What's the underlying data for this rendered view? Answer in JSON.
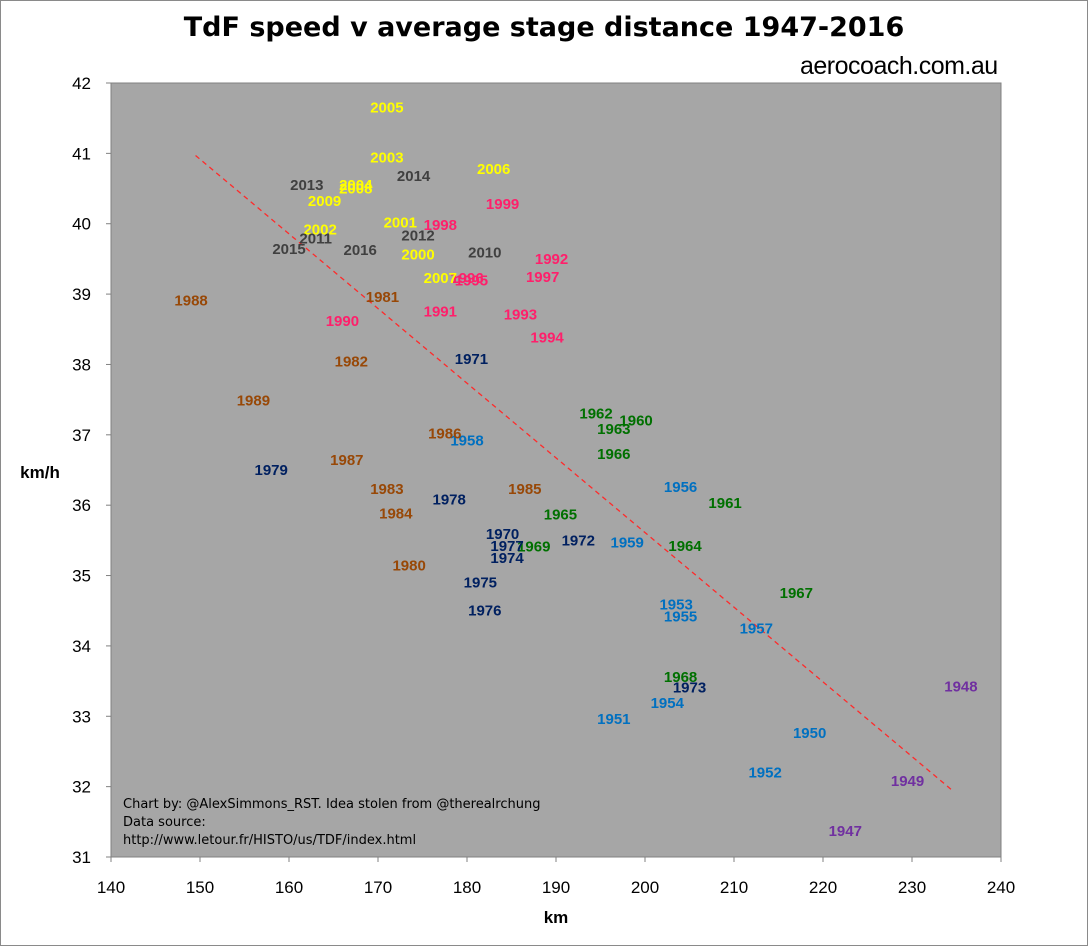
{
  "title": "TdF speed v average stage distance 1947-2016",
  "watermark": "aerocoach.com.au",
  "credits": {
    "line1": "Chart by: @AlexSimmons_RST. Idea stolen from @therealrchung",
    "line2": "Data source:",
    "line3": "http://www.letour.fr/HISTO/us/TDF/index.html"
  },
  "chart_data": {
    "type": "scatter",
    "title": "TdF speed v average stage distance 1947-2016",
    "xlabel": "km",
    "ylabel": "km/h",
    "xlim": [
      140,
      240
    ],
    "ylim": [
      31,
      42
    ],
    "xticks": [
      "140",
      "150",
      "160",
      "170",
      "180",
      "190",
      "200",
      "210",
      "220",
      "230",
      "240"
    ],
    "yticks": [
      "31",
      "32",
      "33",
      "34",
      "35",
      "36",
      "37",
      "38",
      "39",
      "40",
      "41",
      "42"
    ],
    "grid": false,
    "plot_background": "#a6a6a6",
    "trendline": {
      "style": "dashed",
      "color": "#ff2a2a",
      "x": [
        149.5,
        234.5
      ],
      "y": [
        40.97,
        31.95
      ]
    },
    "groups": [
      {
        "color": "#7030a0",
        "points": [
          {
            "label": "1947",
            "x": 222.5,
            "y": 31.37
          },
          {
            "label": "1948",
            "x": 235.5,
            "y": 33.42
          },
          {
            "label": "1949",
            "x": 229.5,
            "y": 32.08
          }
        ]
      },
      {
        "color": "#0070c0",
        "points": [
          {
            "label": "1950",
            "x": 218.5,
            "y": 32.76
          },
          {
            "label": "1951",
            "x": 196.5,
            "y": 32.96
          },
          {
            "label": "1952",
            "x": 213.5,
            "y": 32.2
          },
          {
            "label": "1953",
            "x": 203.5,
            "y": 34.59
          },
          {
            "label": "1954",
            "x": 202.5,
            "y": 33.19
          },
          {
            "label": "1955",
            "x": 204.0,
            "y": 34.42
          },
          {
            "label": "1956",
            "x": 204.0,
            "y": 36.26
          },
          {
            "label": "1957",
            "x": 212.5,
            "y": 34.25
          },
          {
            "label": "1958",
            "x": 180.0,
            "y": 36.92
          },
          {
            "label": "1959",
            "x": 198.0,
            "y": 35.47
          }
        ]
      },
      {
        "color": "#007000",
        "points": [
          {
            "label": "1960",
            "x": 199.0,
            "y": 37.2
          },
          {
            "label": "1961",
            "x": 209.0,
            "y": 36.03
          },
          {
            "label": "1962",
            "x": 194.5,
            "y": 37.3
          },
          {
            "label": "1963",
            "x": 196.5,
            "y": 37.08
          },
          {
            "label": "1964",
            "x": 204.5,
            "y": 35.42
          },
          {
            "label": "1965",
            "x": 190.5,
            "y": 35.87
          },
          {
            "label": "1966",
            "x": 196.5,
            "y": 36.73
          },
          {
            "label": "1967",
            "x": 217.0,
            "y": 34.75
          },
          {
            "label": "1968",
            "x": 204.0,
            "y": 33.56
          },
          {
            "label": "1969",
            "x": 187.5,
            "y": 35.41
          }
        ]
      },
      {
        "color": "#002060",
        "points": [
          {
            "label": "1970",
            "x": 184.0,
            "y": 35.59
          },
          {
            "label": "1971",
            "x": 180.5,
            "y": 38.08
          },
          {
            "label": "1972",
            "x": 192.5,
            "y": 35.5
          },
          {
            "label": "1973",
            "x": 205.0,
            "y": 33.41
          },
          {
            "label": "1974",
            "x": 184.5,
            "y": 35.25
          },
          {
            "label": "1975",
            "x": 181.5,
            "y": 34.9
          },
          {
            "label": "1976",
            "x": 182.0,
            "y": 34.5
          },
          {
            "label": "1977",
            "x": 184.5,
            "y": 35.42
          },
          {
            "label": "1978",
            "x": 178.0,
            "y": 36.08
          },
          {
            "label": "1979",
            "x": 158.0,
            "y": 36.5
          }
        ]
      },
      {
        "color": "#984807",
        "points": [
          {
            "label": "1980",
            "x": 173.5,
            "y": 35.14
          },
          {
            "label": "1981",
            "x": 170.5,
            "y": 38.96
          },
          {
            "label": "1982",
            "x": 167.0,
            "y": 38.04
          },
          {
            "label": "1983",
            "x": 171.0,
            "y": 36.23
          },
          {
            "label": "1984",
            "x": 172.0,
            "y": 35.88
          },
          {
            "label": "1985",
            "x": 186.5,
            "y": 36.23
          },
          {
            "label": "1986",
            "x": 177.5,
            "y": 37.02
          },
          {
            "label": "1987",
            "x": 166.5,
            "y": 36.64
          },
          {
            "label": "1988",
            "x": 149.0,
            "y": 38.91
          },
          {
            "label": "1989",
            "x": 156.0,
            "y": 37.49
          }
        ]
      },
      {
        "color": "#ff1f6b",
        "points": [
          {
            "label": "1990",
            "x": 166.0,
            "y": 38.62
          },
          {
            "label": "1991",
            "x": 177.0,
            "y": 38.75
          },
          {
            "label": "1992",
            "x": 189.5,
            "y": 39.5
          },
          {
            "label": "1993",
            "x": 186.0,
            "y": 38.71
          },
          {
            "label": "1994",
            "x": 189.0,
            "y": 38.38
          },
          {
            "label": "1995",
            "x": 180.5,
            "y": 39.19
          },
          {
            "label": "1996",
            "x": 180.0,
            "y": 39.23
          },
          {
            "label": "1997",
            "x": 188.5,
            "y": 39.24
          },
          {
            "label": "1998",
            "x": 177.0,
            "y": 39.98
          },
          {
            "label": "1999",
            "x": 184.0,
            "y": 40.28
          }
        ]
      },
      {
        "color": "#ffff00",
        "points": [
          {
            "label": "2000",
            "x": 174.5,
            "y": 39.56
          },
          {
            "label": "2001",
            "x": 172.5,
            "y": 40.02
          },
          {
            "label": "2002",
            "x": 163.5,
            "y": 39.92
          },
          {
            "label": "2003",
            "x": 171.0,
            "y": 40.94
          },
          {
            "label": "2004",
            "x": 167.5,
            "y": 40.55
          },
          {
            "label": "2005",
            "x": 171.0,
            "y": 41.65
          },
          {
            "label": "2006",
            "x": 183.0,
            "y": 40.78
          },
          {
            "label": "2007",
            "x": 177.0,
            "y": 39.23
          },
          {
            "label": "2008",
            "x": 167.5,
            "y": 40.5
          },
          {
            "label": "2009",
            "x": 164.0,
            "y": 40.32
          }
        ]
      },
      {
        "color": "#404040",
        "points": [
          {
            "label": "2010",
            "x": 182.0,
            "y": 39.59
          },
          {
            "label": "2011",
            "x": 163.0,
            "y": 39.79
          },
          {
            "label": "2012",
            "x": 174.5,
            "y": 39.83
          },
          {
            "label": "2013",
            "x": 162.0,
            "y": 40.55
          },
          {
            "label": "2014",
            "x": 174.0,
            "y": 40.68
          },
          {
            "label": "2015",
            "x": 160.0,
            "y": 39.64
          },
          {
            "label": "2016",
            "x": 168.0,
            "y": 39.63
          }
        ]
      }
    ]
  }
}
